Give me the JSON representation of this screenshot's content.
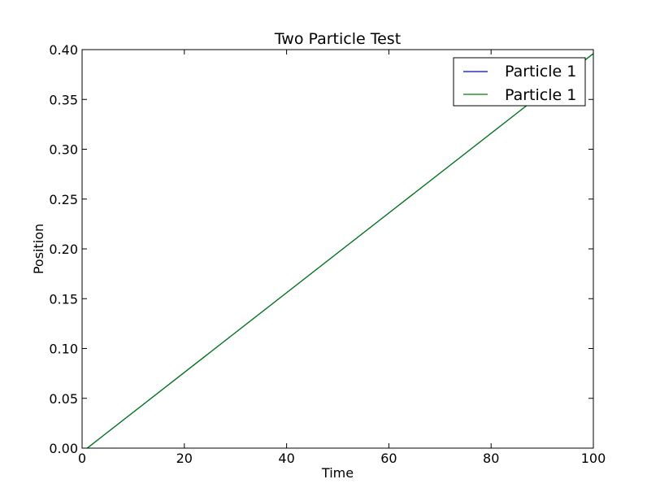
{
  "chart_data": {
    "type": "line",
    "title": "Two Particle Test",
    "xlabel": "Time",
    "ylabel": "Position",
    "xlim": [
      0,
      100
    ],
    "ylim": [
      0,
      0.4
    ],
    "xticks": [
      0,
      20,
      40,
      60,
      80,
      100
    ],
    "xtick_labels": [
      "0",
      "20",
      "40",
      "60",
      "80",
      "100"
    ],
    "yticks": [
      0,
      0.05,
      0.1,
      0.15,
      0.2,
      0.25,
      0.3,
      0.35,
      0.4
    ],
    "ytick_labels": [
      "0.00",
      "0.05",
      "0.10",
      "0.15",
      "0.20",
      "0.25",
      "0.30",
      "0.35",
      "0.40"
    ],
    "grid": false,
    "legend_position": "top-right",
    "series": [
      {
        "name": "Particle 1",
        "color": "#0000ff",
        "x": [
          1,
          100
        ],
        "y": [
          0,
          0.396
        ]
      },
      {
        "name": "Particle 1",
        "color": "#008000",
        "x": [
          1,
          100
        ],
        "y": [
          0,
          0.396
        ]
      }
    ]
  }
}
